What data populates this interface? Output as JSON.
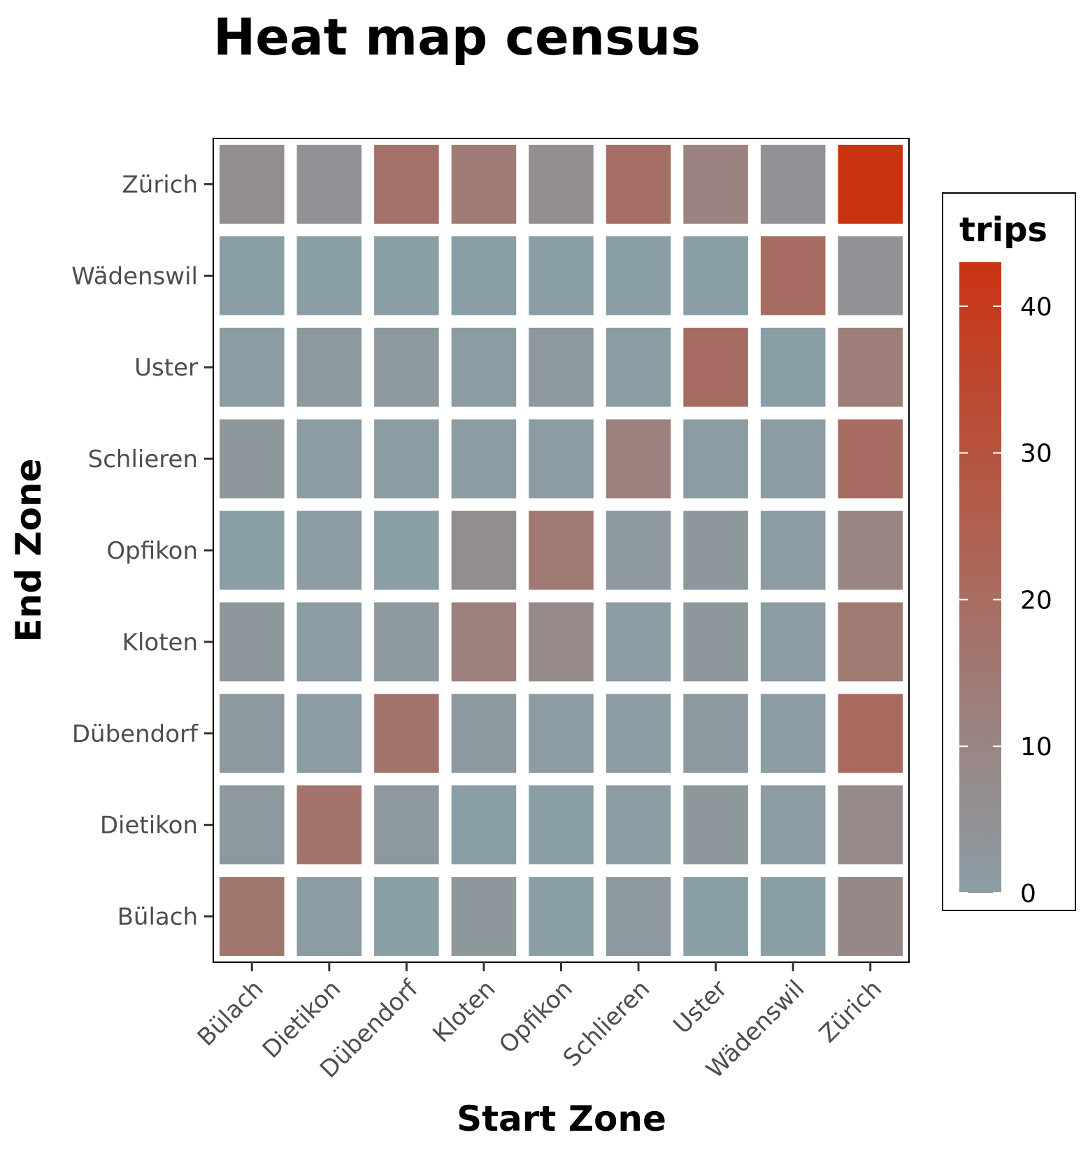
{
  "chart_data": {
    "type": "heatmap",
    "title": "Heat map census",
    "xlabel": "Start Zone",
    "ylabel": "End Zone",
    "x_categories": [
      "Bülach",
      "Dietikon",
      "Dübendorf",
      "Kloten",
      "Opfikon",
      "Schlieren",
      "Uster",
      "Wädenswil",
      "Zürich"
    ],
    "y_categories": [
      "Bülach",
      "Dietikon",
      "Dübendorf",
      "Kloten",
      "Opfikon",
      "Schlieren",
      "Uster",
      "Wädenswil",
      "Zürich"
    ],
    "values": [
      [
        16,
        1,
        0,
        3,
        0,
        2,
        0,
        0,
        9
      ],
      [
        2,
        17,
        2,
        0,
        0,
        1,
        3,
        1,
        8
      ],
      [
        2,
        1,
        17,
        2,
        1,
        1,
        2,
        1,
        21
      ],
      [
        3,
        1,
        2,
        12,
        8,
        1,
        3,
        1,
        15
      ],
      [
        0,
        1,
        0,
        7,
        15,
        2,
        3,
        1,
        10
      ],
      [
        3,
        1,
        1,
        1,
        1,
        12,
        1,
        1,
        20
      ],
      [
        1,
        2,
        2,
        1,
        2,
        1,
        20,
        0,
        13
      ],
      [
        0,
        0,
        0,
        0,
        0,
        0,
        0,
        20,
        5
      ],
      [
        7,
        5,
        18,
        14,
        6,
        19,
        11,
        5,
        43
      ]
    ],
    "color_scale": {
      "low": "#8a9ea6",
      "high": "#c93312",
      "limits": [
        0,
        43
      ]
    },
    "legend": {
      "title": "trips",
      "ticks": [
        0,
        10,
        20,
        30,
        40
      ],
      "placement": "right"
    },
    "grid": false
  }
}
